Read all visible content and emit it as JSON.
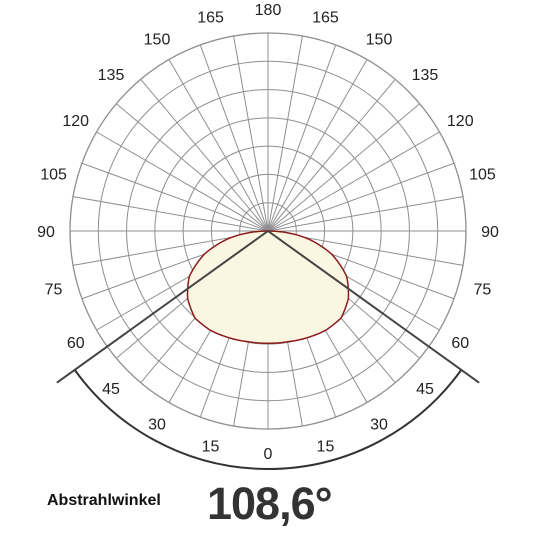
{
  "chart_data": {
    "type": "polar",
    "angle_labels_left": [
      "180",
      "165",
      "150",
      "135",
      "120",
      "105",
      "90",
      "75",
      "60",
      "45",
      "30",
      "15",
      "0"
    ],
    "angle_labels_right": [
      "165",
      "150",
      "135",
      "120",
      "105",
      "90",
      "75",
      "60",
      "45",
      "30",
      "15"
    ],
    "grid": true,
    "angular_step_deg": 15,
    "radial_rings": 7,
    "beam_angle_deg": 108.6,
    "intensity_curve": {
      "angles_deg": [
        0,
        10,
        20,
        30,
        40,
        50,
        60,
        70,
        80,
        90
      ],
      "relative_values": [
        0.567,
        0.568,
        0.574,
        0.58,
        0.574,
        0.53,
        0.459,
        0.342,
        0.19,
        0.0
      ],
      "fill_color": "#fbf6e1",
      "line_color": "#8b1a1a"
    }
  },
  "caption": {
    "label": "Abstrahlwinkel",
    "value": "108,6°"
  }
}
